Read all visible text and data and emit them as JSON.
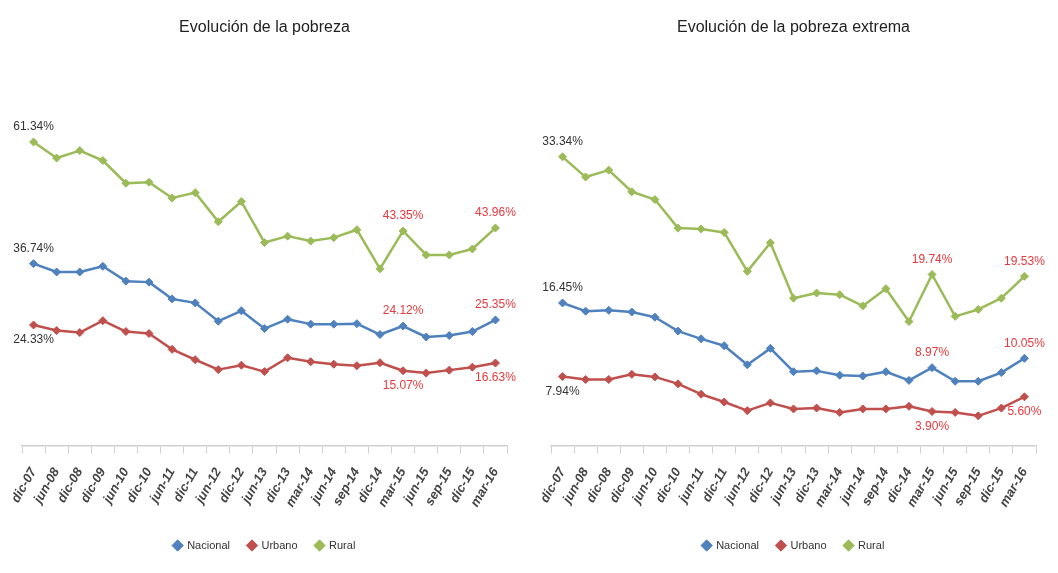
{
  "chart_data": [
    {
      "type": "line",
      "title": "Evolución de la pobreza",
      "categories": [
        "dic-07",
        "jun-08",
        "dic-08",
        "dic-09",
        "jun-10",
        "dic-10",
        "jun-11",
        "dic-11",
        "jun-12",
        "dic-12",
        "jun-13",
        "dic-13",
        "mar-14",
        "jun-14",
        "sep-14",
        "dic-14",
        "mar-15",
        "jun-15",
        "sep-15",
        "dic-15",
        "mar-16"
      ],
      "series": [
        {
          "name": "Nacional",
          "color": "#4f81bd",
          "values": [
            36.74,
            35.05,
            35.05,
            36.2,
            33.2,
            33.0,
            29.6,
            28.8,
            25.1,
            27.2,
            23.6,
            25.5,
            24.5,
            24.5,
            24.6,
            22.4,
            24.12,
            21.9,
            22.2,
            23.0,
            25.35
          ],
          "value_labels": [
            "36.74%",
            null,
            null,
            null,
            null,
            null,
            null,
            null,
            null,
            null,
            null,
            null,
            null,
            null,
            null,
            null,
            "24.12%",
            null,
            null,
            null,
            "25.35%"
          ]
        },
        {
          "name": "Urbano",
          "color": "#c0504d",
          "values": [
            24.33,
            23.2,
            22.8,
            25.2,
            23.0,
            22.6,
            19.4,
            17.3,
            15.3,
            16.2,
            14.9,
            17.7,
            16.9,
            16.4,
            16.1,
            16.7,
            15.07,
            14.6,
            15.2,
            15.8,
            16.63
          ],
          "value_labels": [
            "24.33%",
            null,
            null,
            null,
            null,
            null,
            null,
            null,
            null,
            null,
            null,
            null,
            null,
            null,
            null,
            null,
            "15.07%",
            null,
            null,
            null,
            "16.63%"
          ]
        },
        {
          "name": "Rural",
          "color": "#9bbb59",
          "values": [
            61.34,
            58.1,
            59.6,
            57.6,
            53.0,
            53.2,
            50.0,
            51.1,
            45.2,
            49.3,
            41.0,
            42.3,
            41.3,
            42.0,
            43.6,
            35.7,
            43.35,
            38.5,
            38.5,
            39.7,
            43.96
          ],
          "value_labels": [
            "61.34%",
            null,
            null,
            null,
            null,
            null,
            null,
            null,
            null,
            null,
            null,
            null,
            null,
            null,
            null,
            null,
            "43.35%",
            null,
            null,
            null,
            "43.96%"
          ]
        }
      ],
      "tick_labels": "x",
      "legend": "bottom",
      "marker": "diamond"
    },
    {
      "type": "line",
      "title": "Evolución de la pobreza extrema",
      "categories": [
        "dic-07",
        "jun-08",
        "dic-08",
        "dic-09",
        "jun-10",
        "dic-10",
        "jun-11",
        "dic-11",
        "jun-12",
        "dic-12",
        "jun-13",
        "dic-13",
        "mar-14",
        "jun-14",
        "sep-14",
        "dic-14",
        "mar-15",
        "jun-15",
        "sep-15",
        "dic-15",
        "mar-16"
      ],
      "series": [
        {
          "name": "Nacional",
          "color": "#4f81bd",
          "values": [
            16.45,
            15.5,
            15.6,
            15.4,
            14.8,
            13.2,
            12.3,
            11.5,
            9.3,
            11.2,
            8.5,
            8.6,
            8.1,
            8.0,
            8.5,
            7.5,
            8.97,
            7.4,
            7.4,
            8.4,
            10.05
          ],
          "value_labels": [
            "16.45%",
            null,
            null,
            null,
            null,
            null,
            null,
            null,
            null,
            null,
            null,
            null,
            null,
            null,
            null,
            null,
            "8.97%",
            null,
            null,
            null,
            "10.05%"
          ]
        },
        {
          "name": "Urbano",
          "color": "#c0504d",
          "values": [
            7.94,
            7.6,
            7.6,
            8.2,
            7.9,
            7.1,
            5.9,
            5.0,
            4.0,
            4.9,
            4.2,
            4.3,
            3.8,
            4.2,
            4.2,
            4.5,
            3.9,
            3.8,
            3.4,
            4.3,
            5.6
          ],
          "value_labels": [
            "7.94%",
            null,
            null,
            null,
            null,
            null,
            null,
            null,
            null,
            null,
            null,
            null,
            null,
            null,
            null,
            null,
            "3.90%",
            null,
            null,
            null,
            "5.60%"
          ]
        },
        {
          "name": "Rural",
          "color": "#9bbb59",
          "values": [
            33.34,
            31.0,
            31.8,
            29.3,
            28.4,
            25.1,
            25.0,
            24.6,
            20.1,
            23.4,
            17.0,
            17.6,
            17.4,
            16.1,
            18.1,
            14.3,
            19.74,
            14.9,
            15.7,
            17.0,
            19.53
          ],
          "value_labels": [
            "33.34%",
            null,
            null,
            null,
            null,
            null,
            null,
            null,
            null,
            null,
            null,
            null,
            null,
            null,
            null,
            null,
            "19.74%",
            null,
            null,
            null,
            "19.53%"
          ]
        }
      ],
      "tick_labels": "x",
      "legend": "bottom",
      "marker": "diamond"
    }
  ]
}
